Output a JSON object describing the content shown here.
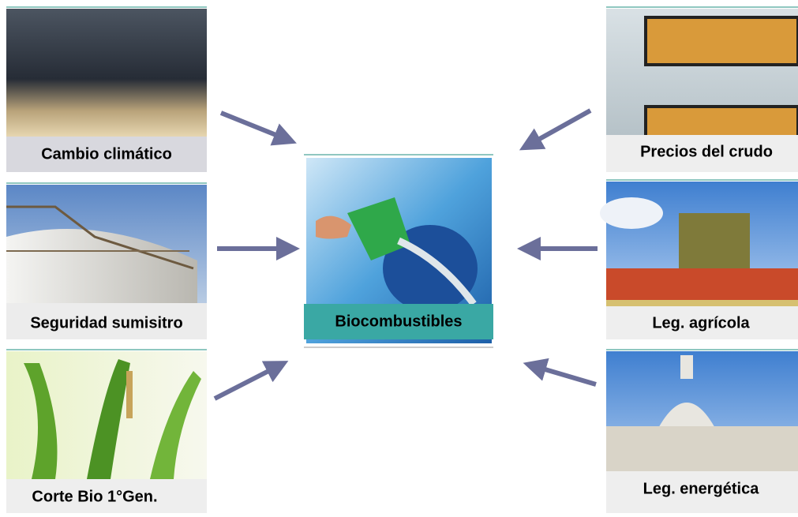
{
  "center": {
    "label": "Biocombustibles"
  },
  "factors": [
    {
      "label": "Cambio climático"
    },
    {
      "label": "Seguridad sumisitro"
    },
    {
      "label": "Corte Bio 1°Gen."
    },
    {
      "label": "Precios del crudo"
    },
    {
      "label": "Leg. agrícola"
    },
    {
      "label": "Leg. energética"
    }
  ]
}
